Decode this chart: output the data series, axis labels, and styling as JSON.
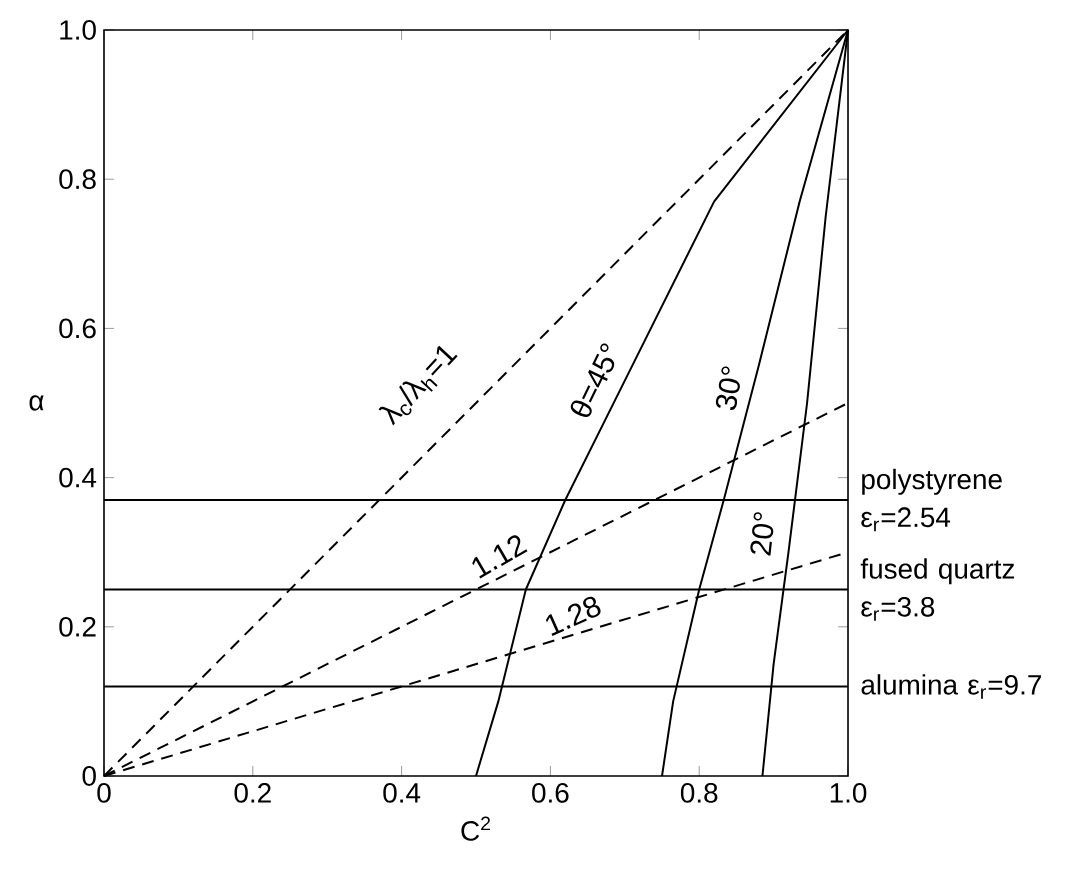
{
  "chart_data": {
    "type": "line",
    "xlabel": "C$^{2}$",
    "ylabel": "α",
    "xlim": [
      0,
      1.0
    ],
    "ylim": [
      0,
      1.0
    ],
    "xticks": [
      0,
      {
        "value": 0.2,
        "label": "0.2"
      },
      {
        "value": 0.4,
        "label": "0.4"
      },
      {
        "value": 0.6,
        "label": "0.6"
      },
      {
        "value": 0.8,
        "label": "0.8"
      },
      {
        "value": 1.0,
        "label": "1.0"
      }
    ],
    "yticks": [
      0,
      {
        "value": 0.2,
        "label": "0.2"
      },
      {
        "value": 0.4,
        "label": "0.4"
      },
      {
        "value": 0.6,
        "label": "0.6"
      },
      {
        "value": 0.8,
        "label": "0.8"
      },
      {
        "value": 1.0,
        "label": "1.0"
      }
    ],
    "grid": false,
    "legend": false,
    "marker": "none",
    "series": [
      {
        "name": "λ$_{c}$/λ$_{h}$=1",
        "color": "#000000",
        "line_style": "dashed",
        "x": [
          0,
          1.0
        ],
        "values": [
          0,
          1.0
        ]
      },
      {
        "name": "1.12",
        "color": "#000000",
        "line_style": "dashed",
        "x": [
          0,
          1.0
        ],
        "values": [
          0,
          0.5
        ]
      },
      {
        "name": "1.28",
        "color": "#000000",
        "line_style": "dashed",
        "x": [
          0,
          1.0
        ],
        "values": [
          0,
          0.3
        ]
      },
      {
        "name": "θ=45°",
        "color": "#000000",
        "line_style": "solid",
        "x": [
          0.5,
          0.53,
          0.567,
          0.62,
          0.7,
          0.82,
          1.0
        ],
        "values": [
          0,
          0.1,
          0.25,
          0.37,
          0.53,
          0.77,
          1.0
        ]
      },
      {
        "name": "30°",
        "color": "#000000",
        "line_style": "solid",
        "x": [
          0.75,
          0.765,
          0.8,
          0.833,
          0.88,
          0.935,
          1.0
        ],
        "values": [
          0,
          0.1,
          0.25,
          0.37,
          0.55,
          0.77,
          1.0
        ]
      },
      {
        "name": "20°",
        "color": "#000000",
        "line_style": "solid",
        "x": [
          0.885,
          0.9,
          0.92,
          0.945,
          0.97,
          1.0
        ],
        "values": [
          0,
          0.15,
          0.3,
          0.5,
          0.75,
          1.0
        ]
      }
    ],
    "ref_lines": [
      {
        "axis": "y",
        "value": 0.37,
        "color": "#000000",
        "line_style": "solid"
      },
      {
        "axis": "y",
        "value": 0.25,
        "color": "#000000",
        "line_style": "solid"
      },
      {
        "axis": "y",
        "value": 0.12,
        "color": "#000000",
        "line_style": "solid"
      }
    ],
    "annotations": [
      "polystyrene ε$_{r}$=2.54",
      "fused quartz ε$_{r}$=3.8",
      "alumina ε$_{r}$=9.7"
    ]
  }
}
